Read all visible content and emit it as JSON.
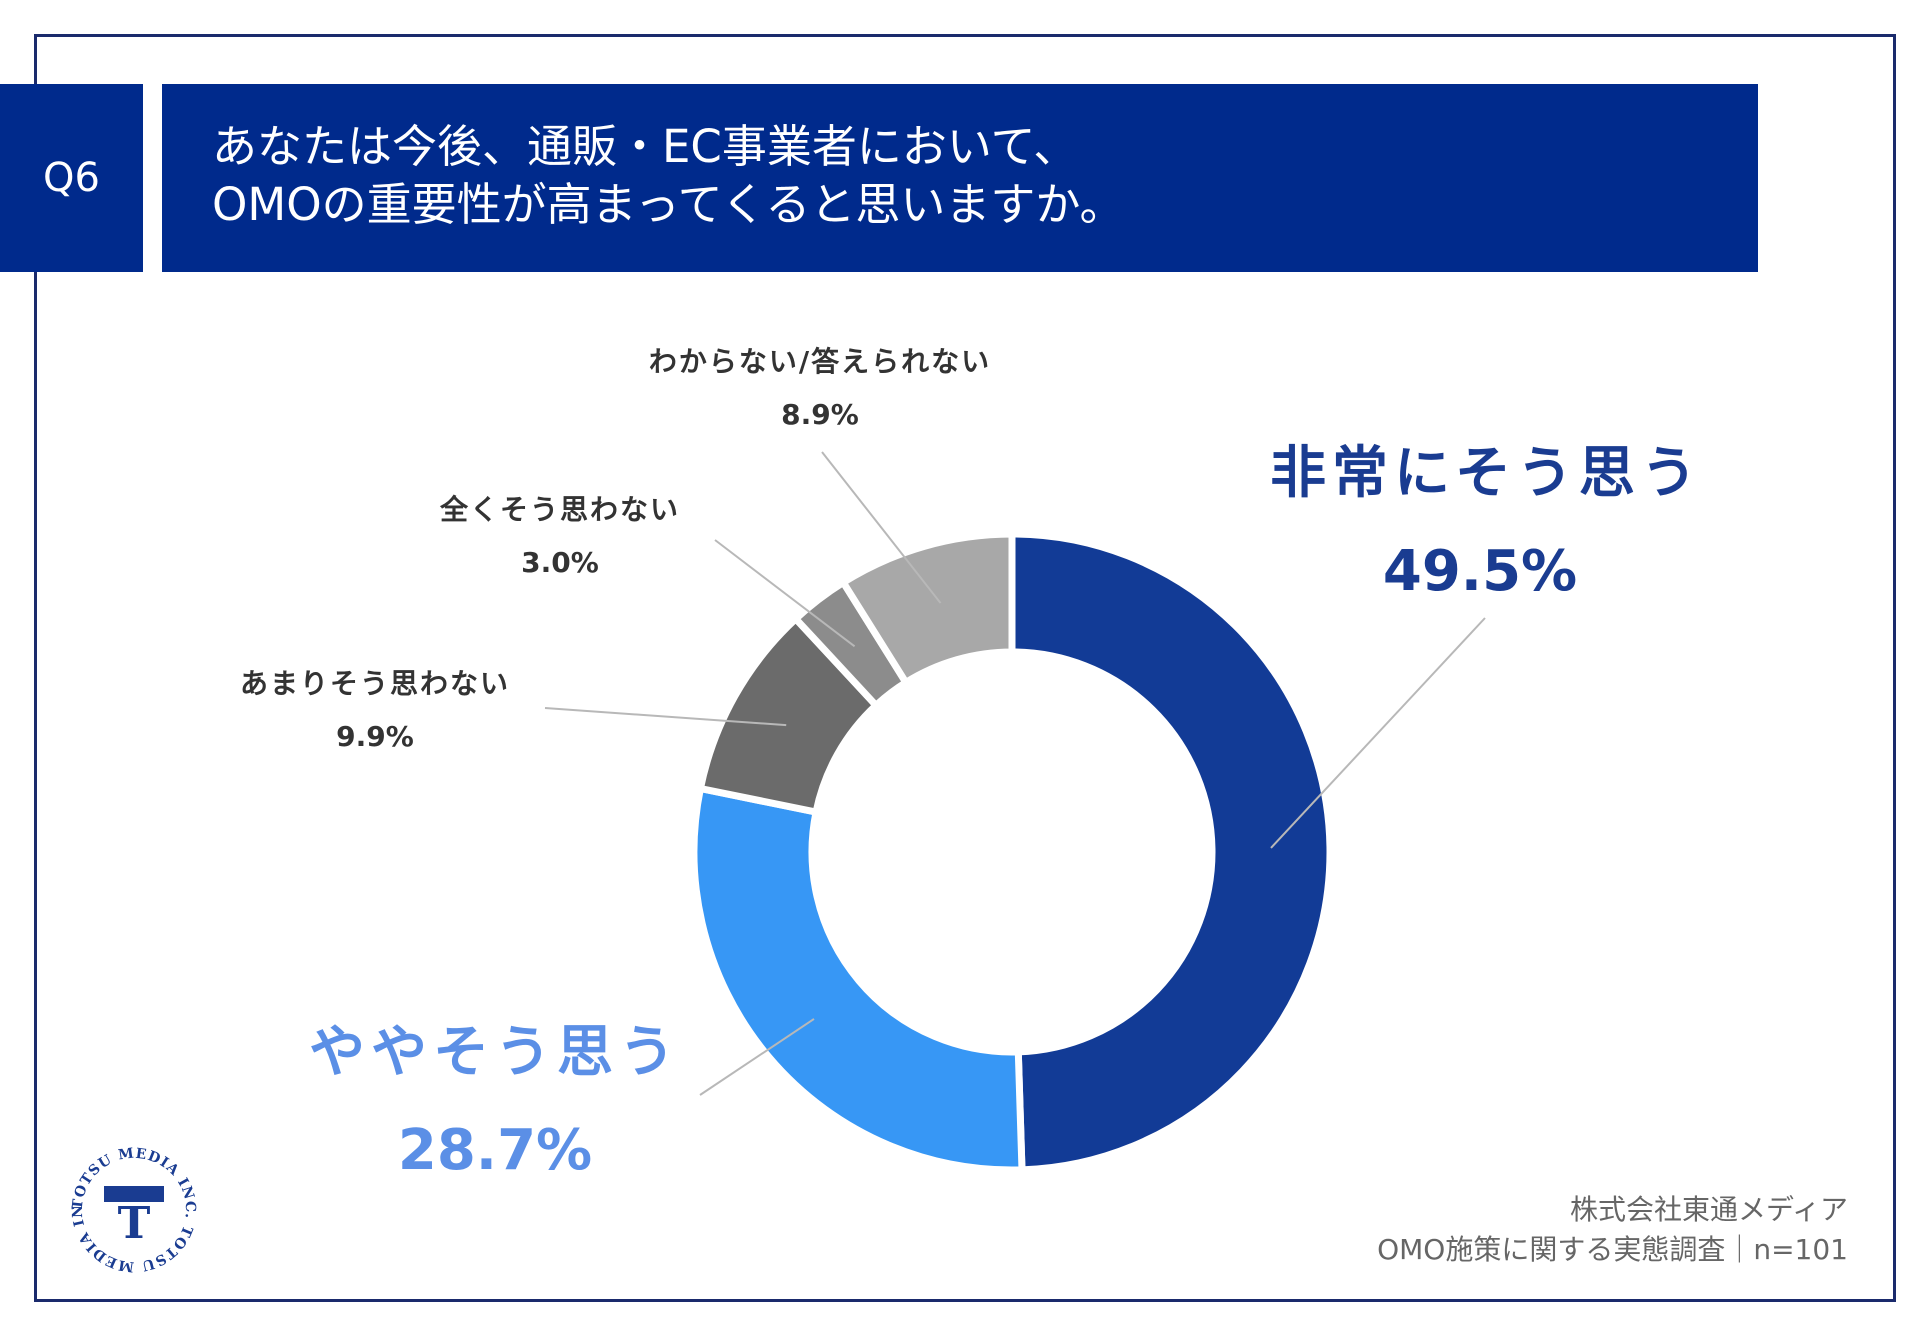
{
  "header": {
    "question_no": "Q6",
    "title_line1": "あなたは今後、通販・EC事業者において、",
    "title_line2": "OMOの重要性が高まってくると思いますか。"
  },
  "chart_data": {
    "type": "pie",
    "variant": "donut",
    "title": "あなたは今後、通販・EC事業者において、OMOの重要性が高まってくると思いますか。",
    "categories": [
      "非常にそう思う",
      "ややそう思う",
      "あまりそう思わない",
      "全くそう思わない",
      "わからない/答えられない"
    ],
    "values": [
      49.5,
      28.7,
      9.9,
      3.0,
      8.9
    ],
    "labels": [
      "49.5%",
      "28.7%",
      "9.9%",
      "3.0%",
      "8.9%"
    ],
    "colors": [
      "#123b96",
      "#3797f5",
      "#6b6b6b",
      "#8c8c8c",
      "#a8a8a8"
    ],
    "label_colors": [
      "#1a3c91",
      "#5b8fe6",
      "#333333",
      "#333333",
      "#333333"
    ]
  },
  "footer": {
    "company": "株式会社東通メディア",
    "survey": "OMO施策に関する実態調査｜n=101"
  },
  "logo": {
    "text": "TOTSU MEDIA INC. TOTSU MEDIA INC.",
    "mark": "T"
  }
}
